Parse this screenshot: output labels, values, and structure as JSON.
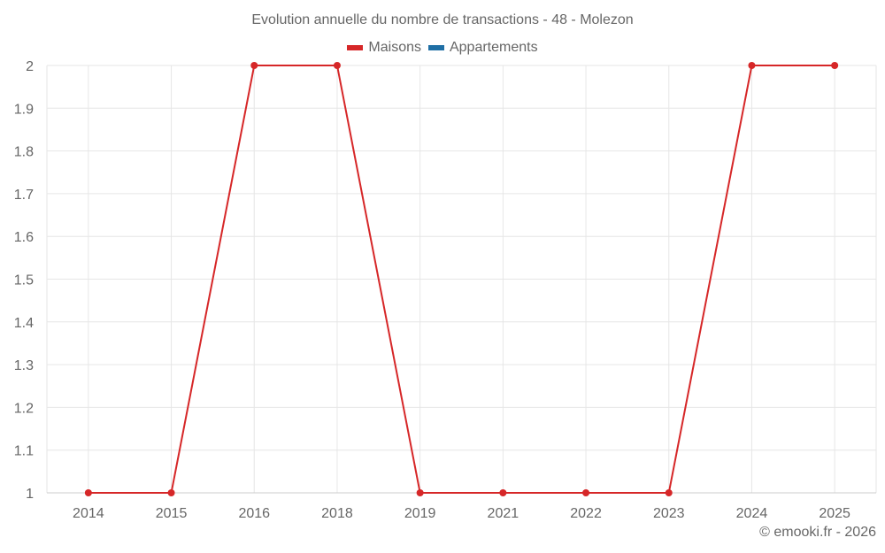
{
  "chart_data": {
    "type": "line",
    "title": "Evolution annuelle du nombre de transactions - 48 - Molezon",
    "xlabel": "",
    "ylabel": "",
    "categories": [
      "2014",
      "2015",
      "2016",
      "2018",
      "2019",
      "2021",
      "2022",
      "2023",
      "2024",
      "2025"
    ],
    "series": [
      {
        "name": "Maisons",
        "color": "#d62728",
        "values": [
          1,
          1,
          2,
          2,
          1,
          1,
          1,
          1,
          2,
          2
        ]
      },
      {
        "name": "Appartements",
        "color": "#1f6fa5",
        "values": []
      }
    ],
    "ylim": [
      1,
      2
    ],
    "yticks": [
      "1",
      "1.1",
      "1.2",
      "1.3",
      "1.4",
      "1.5",
      "1.6",
      "1.7",
      "1.8",
      "1.9",
      "2"
    ],
    "grid": true,
    "legend_position": "top"
  },
  "legend": {
    "items": [
      {
        "label": "Maisons",
        "color": "#d62728"
      },
      {
        "label": "Appartements",
        "color": "#1f6fa5"
      }
    ]
  },
  "credits": "© emooki.fr - 2026"
}
